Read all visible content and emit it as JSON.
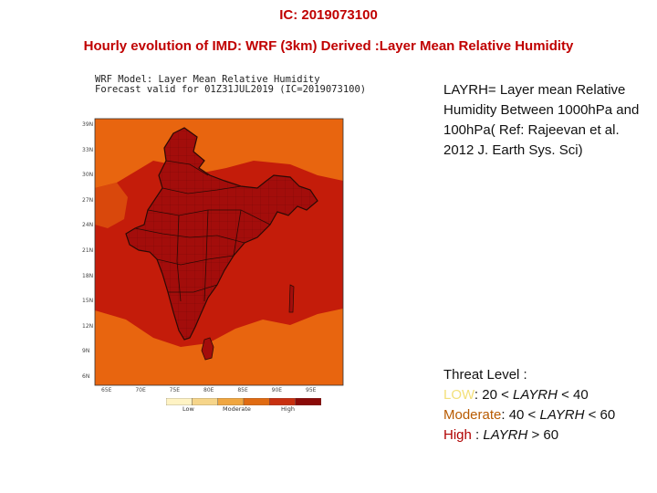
{
  "header": {
    "ic": "IC: 2019073100",
    "title": "Hourly evolution of IMD: WRF (3km) Derived :Layer Mean Relative Humidity"
  },
  "map": {
    "header_line1": "WRF Model: Layer Mean Relative Humidity",
    "header_line2": "Forecast valid for 01Z31JUL2019 (IC=2019073100)",
    "lat_labels": [
      "39N",
      "33N",
      "30N",
      "27N",
      "24N",
      "21N",
      "18N",
      "15N",
      "12N",
      "9N",
      "6N"
    ],
    "lon_labels": [
      "65E",
      "70E",
      "75E",
      "80E",
      "85E",
      "90E",
      "95E"
    ],
    "colorbar": {
      "labels": [
        "Low",
        "Moderate",
        "High"
      ],
      "colors": [
        "#fff3c4",
        "#f6d58a",
        "#f0a640",
        "#e06b12",
        "#c83010",
        "#8a0a08"
      ]
    },
    "colors": {
      "ocean_high": "#c41c0a",
      "ocean_moderate": "#e8650f",
      "land": "#a30d0b",
      "boundary": "#2b0a05"
    }
  },
  "description": {
    "text": "LAYRH= Layer mean Relative Humidity Between 1000hPa and 100hPa( Ref: Rajeevan et al. 2012 J. Earth Sys. Sci)"
  },
  "threat": {
    "heading": "Threat Level :",
    "low_word": "LOW",
    "low_rest": ": 20 < ",
    "low_var": "LAYRH",
    "low_tail": " <  40",
    "mod_word": "Moderate",
    "mod_rest": ": 40 < ",
    "mod_var": "LAYRH",
    "mod_tail": " < 60",
    "high_word": "High",
    "high_rest": " : ",
    "high_var": "LAYRH",
    "high_tail": " > 60"
  }
}
